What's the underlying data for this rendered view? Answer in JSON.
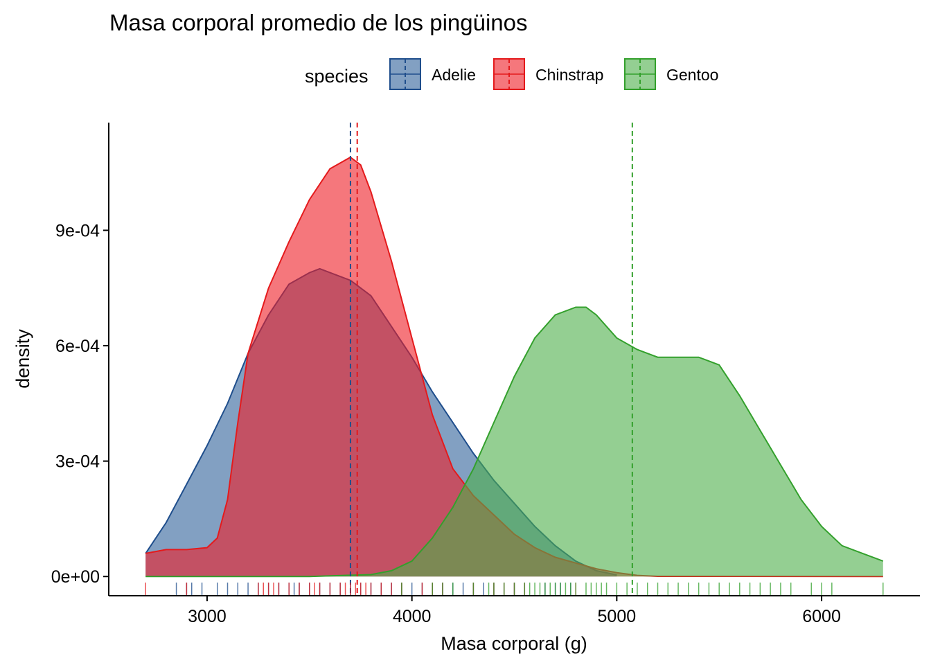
{
  "chart_data": {
    "type": "area",
    "subtype": "density",
    "title": "Masa corporal promedio de los pingüinos",
    "xlabel": "Masa corporal (g)",
    "ylabel": "density",
    "xlim": [
      2520,
      6480
    ],
    "ylim": [
      -5e-05,
      0.00118
    ],
    "x_ticks": [
      3000,
      4000,
      5000,
      6000
    ],
    "x_tick_labels": [
      "3000",
      "4000",
      "5000",
      "6000"
    ],
    "y_ticks": [
      0,
      0.0003,
      0.0006,
      0.0009
    ],
    "y_tick_labels": [
      "0e+00",
      "3e-04",
      "6e-04",
      "9e-04"
    ],
    "grid": false,
    "legend": {
      "title": "species",
      "position": "top"
    },
    "series": [
      {
        "name": "Adelie",
        "fill": "#2E6099",
        "stroke": "#1F4E8C",
        "mean": 3700,
        "x": [
          2700,
          2800,
          2900,
          3000,
          3100,
          3200,
          3300,
          3400,
          3500,
          3550,
          3600,
          3700,
          3800,
          3900,
          4000,
          4100,
          4200,
          4300,
          4400,
          4500,
          4600,
          4700,
          4800,
          4900,
          5000
        ],
        "y": [
          6e-05,
          0.00014,
          0.00024,
          0.00034,
          0.00045,
          0.00058,
          0.00068,
          0.00076,
          0.00079,
          0.0008,
          0.00079,
          0.00077,
          0.00073,
          0.00065,
          0.00057,
          0.00048,
          0.0004,
          0.00032,
          0.00025,
          0.00019,
          0.00013,
          8e-05,
          4e-05,
          1.5e-05,
          4e-06
        ]
      },
      {
        "name": "Chinstrap",
        "fill": "#EE1C25",
        "stroke": "#E41A1C",
        "mean": 3733,
        "x": [
          2700,
          2800,
          2900,
          3000,
          3050,
          3100,
          3150,
          3200,
          3300,
          3400,
          3500,
          3600,
          3700,
          3750,
          3800,
          3900,
          4000,
          4100,
          4200,
          4300,
          4400,
          4500,
          4600,
          4700,
          4800,
          4900,
          5000,
          5100,
          5200,
          6300
        ],
        "y": [
          6e-05,
          7e-05,
          7e-05,
          7.5e-05,
          0.0001,
          0.0002,
          0.0004,
          0.00058,
          0.00075,
          0.00087,
          0.00098,
          0.00106,
          0.00109,
          0.00107,
          0.001,
          0.00082,
          0.00062,
          0.00042,
          0.00028,
          0.00021,
          0.00016,
          0.00011,
          7.5e-05,
          5e-05,
          3.5e-05,
          2e-05,
          1e-05,
          3e-06,
          5e-07,
          0
        ]
      },
      {
        "name": "Gentoo",
        "fill": "#4DAF4A",
        "stroke": "#33A02C",
        "mean": 5076,
        "x": [
          2700,
          3500,
          3800,
          3900,
          4000,
          4100,
          4200,
          4300,
          4400,
          4500,
          4600,
          4700,
          4800,
          4850,
          4900,
          5000,
          5100,
          5200,
          5300,
          5400,
          5500,
          5600,
          5700,
          5800,
          5900,
          6000,
          6100,
          6200,
          6300
        ],
        "y": [
          0,
          0,
          5e-06,
          1.5e-05,
          4e-05,
          0.0001,
          0.00018,
          0.00028,
          0.0004,
          0.00052,
          0.00062,
          0.00068,
          0.0007,
          0.0007,
          0.00068,
          0.00062,
          0.00059,
          0.00057,
          0.00057,
          0.00057,
          0.00055,
          0.00047,
          0.00038,
          0.00029,
          0.0002,
          0.00013,
          8e-05,
          6e-05,
          4e-05
        ]
      }
    ],
    "rug": {
      "Adelie": [
        2850,
        2900,
        2925,
        2975,
        3050,
        3100,
        3150,
        3200,
        3250,
        3300,
        3350,
        3400,
        3425,
        3450,
        3500,
        3550,
        3600,
        3650,
        3700,
        3750,
        3800,
        3850,
        3900,
        3950,
        4000,
        4050,
        4100,
        4150,
        4200,
        4250,
        4300,
        4350,
        4400,
        4450,
        4500,
        4550,
        4650,
        4700,
        4725,
        4775
      ],
      "Chinstrap": [
        2700,
        2900,
        3250,
        3275,
        3300,
        3325,
        3350,
        3400,
        3450,
        3500,
        3525,
        3550,
        3600,
        3650,
        3675,
        3700,
        3725,
        3750,
        3775,
        3800,
        3850,
        3900,
        3950,
        4050,
        4100,
        4150,
        4300,
        4400,
        4450,
        4500,
        4550,
        4800
      ],
      "Gentoo": [
        3950,
        4100,
        4150,
        4200,
        4300,
        4375,
        4400,
        4450,
        4500,
        4550,
        4575,
        4600,
        4625,
        4650,
        4675,
        4700,
        4725,
        4750,
        4775,
        4800,
        4850,
        4875,
        4900,
        4925,
        4950,
        5000,
        5050,
        5100,
        5150,
        5200,
        5250,
        5300,
        5350,
        5400,
        5450,
        5500,
        5550,
        5600,
        5650,
        5700,
        5750,
        5800,
        5850,
        5950,
        6000,
        6050,
        6300
      ]
    }
  }
}
